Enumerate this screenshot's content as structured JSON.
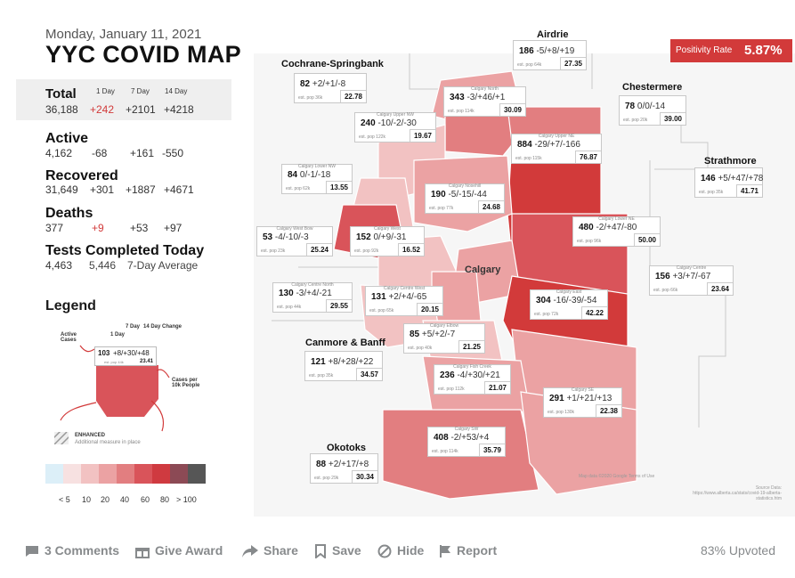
{
  "header": {
    "date": "Monday, January 11, 2021",
    "title": "YYC COVID MAP"
  },
  "stats": {
    "col_headers": [
      "1 Day",
      "7 Day",
      "14 Day"
    ],
    "total": {
      "label": "Total",
      "value": "36,188",
      "d1": "+242",
      "d7": "+2101",
      "d14": "+4218"
    },
    "active": {
      "label": "Active",
      "value": "4,162",
      "d1": "-68",
      "d7": "+161",
      "d14": "-550"
    },
    "recovered": {
      "label": "Recovered",
      "value": "31,649",
      "d1": "+301",
      "d7": "+1887",
      "d14": "+4671"
    },
    "deaths": {
      "label": "Deaths",
      "value": "377",
      "d1": "+9",
      "d7": "+53",
      "d14": "+97"
    },
    "tests": {
      "label": "Tests Completed Today",
      "value": "4,463",
      "avg_value": "5,446",
      "avg_label": "7-Day Average"
    }
  },
  "legend": {
    "title": "Legend",
    "active_cases": "Active Cases",
    "one_day": "1 Day",
    "seven_day": "7 Day",
    "fourteen_day": "14 Day Change",
    "sample_cases": "103",
    "sample_change": "+8/+30/+48",
    "sample_pop": "est. pop 44k",
    "sample_per10k": "23.41",
    "cases_per": "Cases per 10k People",
    "enhanced": "ENHANCED",
    "enhanced_note": "Additional measure in place",
    "scale_labels": [
      "< 5",
      "10",
      "20",
      "40",
      "60",
      "80",
      "> 100"
    ],
    "scale_colors": [
      "#dceff8",
      "#f7e1e1",
      "#f2c2c2",
      "#eba2a3",
      "#e27e80",
      "#d9545a",
      "#cf3a40",
      "#8c4a55",
      "#565656"
    ]
  },
  "positivity": {
    "label": "Positivity Rate",
    "value": "5.87%"
  },
  "region_names": {
    "airdrie": "Airdrie",
    "cochrane": "Cochrane-Springbank",
    "chestermere": "Chestermere",
    "strathmore": "Strathmore",
    "canmore": "Canmore & Banff",
    "okotoks": "Okotoks",
    "calgary": "Calgary"
  },
  "cards": [
    {
      "caption": "",
      "cases": "186",
      "change": "-5/+8/+19",
      "pop": "est. pop 64k",
      "per10k": "27.35"
    },
    {
      "caption": "",
      "cases": "82",
      "change": "+2/+1/-8",
      "pop": "est. pop 36k",
      "per10k": "22.78"
    },
    {
      "caption": "Calgary North",
      "cases": "343",
      "change": "-3/+46/+1",
      "pop": "est. pop 114k",
      "per10k": "30.09"
    },
    {
      "caption": "",
      "cases": "78",
      "change": "0/0/-14",
      "pop": "est. pop 20k",
      "per10k": "39.00"
    },
    {
      "caption": "Calgary Upper NW",
      "cases": "240",
      "change": "-10/-2/-30",
      "pop": "est. pop 122k",
      "per10k": "19.67"
    },
    {
      "caption": "Calgary Upper NE",
      "cases": "884",
      "change": "-29/+7/-166",
      "pop": "est. pop 115k",
      "per10k": "76.87"
    },
    {
      "caption": "Calgary Lower NW",
      "cases": "84",
      "change": "0/-1/-18",
      "pop": "est. pop 62k",
      "per10k": "13.55"
    },
    {
      "caption": "Calgary Nosehill",
      "cases": "190",
      "change": "-5/-15/-44",
      "pop": "est. pop 77k",
      "per10k": "24.68"
    },
    {
      "caption": "",
      "cases": "146",
      "change": "+5/+47/+78",
      "pop": "est. pop 35k",
      "per10k": "41.71"
    },
    {
      "caption": "Calgary Lower NE",
      "cases": "480",
      "change": "-2/+47/-80",
      "pop": "est. pop 96k",
      "per10k": "50.00"
    },
    {
      "caption": "Calgary West Bow",
      "cases": "53",
      "change": "-4/-10/-3",
      "pop": "est. pop 23k",
      "per10k": "25.24"
    },
    {
      "caption": "Calgary West",
      "cases": "152",
      "change": "0/+9/-31",
      "pop": "est. pop 92k",
      "per10k": "16.52"
    },
    {
      "caption": "Calgary Centre",
      "cases": "156",
      "change": "+3/+7/-67",
      "pop": "est. pop 66k",
      "per10k": "23.64"
    },
    {
      "caption": "Calgary Centre North",
      "cases": "130",
      "change": "-3/+4/-21",
      "pop": "est. pop 44k",
      "per10k": "29.55"
    },
    {
      "caption": "Calgary Centre West",
      "cases": "131",
      "change": "+2/+4/-65",
      "pop": "est. pop 65k",
      "per10k": "20.15"
    },
    {
      "caption": "Calgary East",
      "cases": "304",
      "change": "-16/-39/-54",
      "pop": "est. pop 72k",
      "per10k": "42.22"
    },
    {
      "caption": "Calgary Elbow",
      "cases": "85",
      "change": "+5/+2/-7",
      "pop": "est. pop 40k",
      "per10k": "21.25"
    },
    {
      "caption": "",
      "cases": "121",
      "change": "+8/+28/+22",
      "pop": "est. pop 35k",
      "per10k": "34.57"
    },
    {
      "caption": "Calgary Fish Creek",
      "cases": "236",
      "change": "-4/+30/+21",
      "pop": "est. pop 112k",
      "per10k": "21.07"
    },
    {
      "caption": "Calgary SE",
      "cases": "291",
      "change": "+1/+21/+13",
      "pop": "est. pop 130k",
      "per10k": "22.38"
    },
    {
      "caption": "Calgary SW",
      "cases": "408",
      "change": "-2/+53/+4",
      "pop": "est. pop 114k",
      "per10k": "35.79"
    },
    {
      "caption": "",
      "cases": "88",
      "change": "+2/+17/+8",
      "pop": "est. pop 29k",
      "per10k": "30.34"
    }
  ],
  "map_credit": "Map data ©2020 Google    Terms of Use",
  "source": "Source Data: https://www.alberta.ca/stats/covid-19-alberta-statistics.htm",
  "actions": {
    "comments": "3 Comments",
    "award": "Give Award",
    "share": "Share",
    "save": "Save",
    "hide": "Hide",
    "report": "Report",
    "upvoted": "83% Upvoted"
  }
}
